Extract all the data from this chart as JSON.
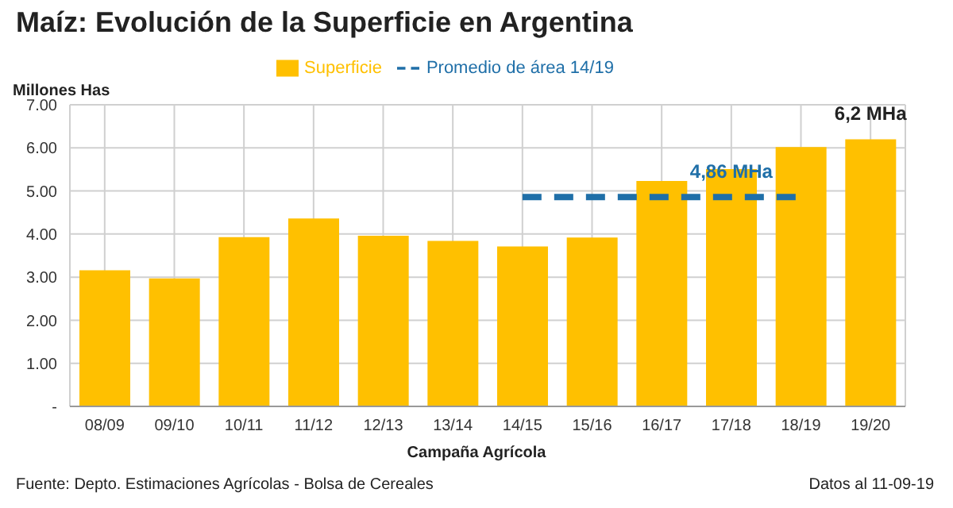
{
  "chart_data": {
    "type": "bar",
    "title": "Maíz: Evolución de la Superficie en Argentina",
    "xlabel": "Campaña Agrícola",
    "ylabel": "Millones Has",
    "categories": [
      "08/09",
      "09/10",
      "10/11",
      "11/12",
      "12/13",
      "13/14",
      "14/15",
      "15/16",
      "16/17",
      "17/18",
      "18/19",
      "19/20"
    ],
    "series": [
      {
        "name": "Superficie",
        "color": "#ffc000",
        "values": [
          3.16,
          2.97,
          3.93,
          4.36,
          3.96,
          3.84,
          3.71,
          3.92,
          5.23,
          5.51,
          6.02,
          6.2
        ]
      },
      {
        "name": "Promedio de área 14/19",
        "type": "line",
        "color": "#1f6fa8",
        "line_style": "dashed",
        "values": [
          null,
          null,
          null,
          null,
          null,
          null,
          4.86,
          4.86,
          4.86,
          4.86,
          4.86,
          null
        ]
      }
    ],
    "ylim": [
      0,
      7
    ],
    "yticks": [
      {
        "value": 0,
        "label": "-"
      },
      {
        "value": 1,
        "label": "1.00"
      },
      {
        "value": 2,
        "label": "2.00"
      },
      {
        "value": 3,
        "label": "3.00"
      },
      {
        "value": 4,
        "label": "4.00"
      },
      {
        "value": 5,
        "label": "5.00"
      },
      {
        "value": 6,
        "label": "6.00"
      },
      {
        "value": 7,
        "label": "7.00"
      }
    ],
    "grid": true,
    "legend": "top",
    "marker": "none",
    "annotations": [
      {
        "text": "4,86 MHa",
        "x": "17/18",
        "y": 4.86
      },
      {
        "text": "6,2 MHa",
        "x": "19/20",
        "y": 6.2
      },
      "Fuente: Depto. Estimaciones Agrícolas - Bolsa de Cereales",
      "Datos al 11-09-19"
    ]
  }
}
